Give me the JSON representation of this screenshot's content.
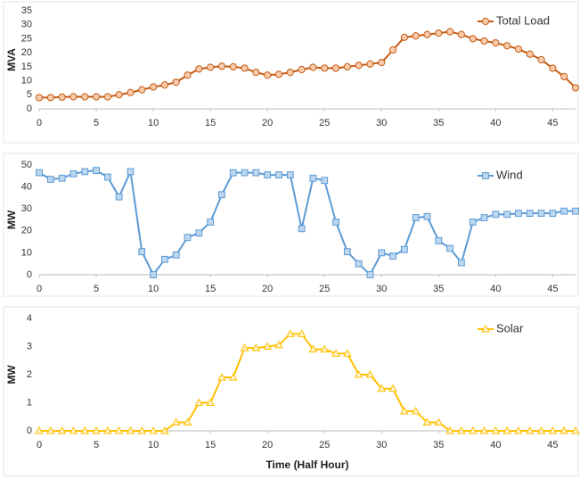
{
  "chart_data": [
    {
      "type": "line",
      "ylabel": "MVA",
      "x": [
        0,
        1,
        2,
        3,
        4,
        5,
        6,
        7,
        8,
        9,
        10,
        11,
        12,
        13,
        14,
        15,
        16,
        17,
        18,
        19,
        20,
        21,
        22,
        23,
        24,
        25,
        26,
        27,
        28,
        29,
        30,
        31,
        32,
        33,
        34,
        35,
        36,
        37,
        38,
        39,
        40,
        41,
        42,
        43,
        44,
        45,
        46,
        47
      ],
      "series": [
        {
          "name": "Total Load",
          "color": "#c55a11",
          "marker": "circle",
          "marker_color": "#f8cbad",
          "values": [
            4,
            4,
            4.2,
            4.3,
            4.3,
            4.3,
            4.3,
            5,
            5.8,
            6.8,
            7.8,
            8.5,
            9.5,
            12,
            14.2,
            14.8,
            15.2,
            15,
            14.5,
            13,
            12,
            12.3,
            13,
            14,
            14.8,
            14.5,
            14.5,
            15,
            15.5,
            16,
            16.5,
            21,
            25.5,
            26,
            26.5,
            27,
            27.5,
            26.5,
            25,
            24.2,
            23.5,
            22.5,
            21.3,
            19.5,
            17.5,
            14.5,
            11.5,
            7.5
          ]
        }
      ],
      "xlim": [
        0,
        47
      ],
      "xticks": [
        0,
        5,
        10,
        15,
        20,
        25,
        30,
        35,
        40,
        45
      ],
      "ylim": [
        0,
        35
      ],
      "yticks": [
        0,
        5,
        10,
        15,
        20,
        25,
        30,
        35
      ],
      "grid": false,
      "legend": "upper right"
    },
    {
      "type": "line",
      "ylabel": "MW",
      "x": [
        0,
        1,
        2,
        3,
        4,
        5,
        6,
        7,
        8,
        9,
        10,
        11,
        12,
        13,
        14,
        15,
        16,
        17,
        18,
        19,
        20,
        21,
        22,
        23,
        24,
        25,
        26,
        27,
        28,
        29,
        30,
        31,
        32,
        33,
        34,
        35,
        36,
        37,
        38,
        39,
        40,
        41,
        42,
        43,
        44,
        45,
        46,
        47
      ],
      "series": [
        {
          "name": "Wind",
          "color": "#5b9bd5",
          "marker": "square",
          "marker_color": "#bdd7ee",
          "values": [
            46.5,
            43.5,
            44,
            46,
            47,
            47.5,
            44.5,
            35.5,
            47,
            10.5,
            0,
            7,
            9,
            17,
            19,
            24,
            36.5,
            46.5,
            46.5,
            46.5,
            45.5,
            45.5,
            45.5,
            21,
            44,
            43,
            24,
            10.5,
            5,
            0,
            10,
            8.5,
            11.5,
            26,
            26.5,
            15.5,
            12,
            5.5,
            24,
            26,
            27.5,
            27.5,
            28,
            28,
            28,
            28,
            29,
            29
          ]
        }
      ],
      "xlim": [
        0,
        47
      ],
      "xticks": [
        0,
        5,
        10,
        15,
        20,
        25,
        30,
        35,
        40,
        45
      ],
      "ylim": [
        0,
        50
      ],
      "yticks": [
        0,
        10,
        20,
        30,
        40,
        50
      ],
      "grid": false,
      "legend": "upper right"
    },
    {
      "type": "line",
      "ylabel": "MW",
      "xlabel": "Time (Half Hour)",
      "x": [
        0,
        1,
        2,
        3,
        4,
        5,
        6,
        7,
        8,
        9,
        10,
        11,
        12,
        13,
        14,
        15,
        16,
        17,
        18,
        19,
        20,
        21,
        22,
        23,
        24,
        25,
        26,
        27,
        28,
        29,
        30,
        31,
        32,
        33,
        34,
        35,
        36,
        37,
        38,
        39,
        40,
        41,
        42,
        43,
        44,
        45,
        46,
        47
      ],
      "series": [
        {
          "name": "Solar",
          "color": "#ffc000",
          "marker": "triangle",
          "marker_color": "#fff2cc",
          "values": [
            0,
            0,
            0,
            0,
            0,
            0,
            0,
            0,
            0,
            0,
            0,
            0,
            0.3,
            0.3,
            1,
            1,
            1.9,
            1.9,
            2.95,
            2.95,
            3,
            3.05,
            3.45,
            3.45,
            2.9,
            2.9,
            2.75,
            2.75,
            2,
            2,
            1.5,
            1.5,
            0.7,
            0.7,
            0.3,
            0.3,
            0,
            0,
            0,
            0,
            0,
            0,
            0,
            0,
            0,
            0,
            0,
            0
          ]
        }
      ],
      "xlim": [
        0,
        47
      ],
      "xticks": [
        0,
        5,
        10,
        15,
        20,
        25,
        30,
        35,
        40,
        45
      ],
      "ylim": [
        0,
        4
      ],
      "yticks": [
        0,
        1,
        2,
        3,
        4
      ],
      "grid": false,
      "legend": "upper right"
    }
  ]
}
